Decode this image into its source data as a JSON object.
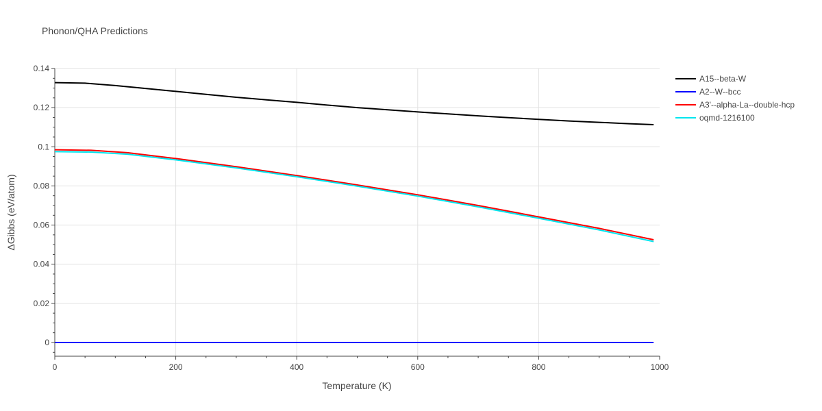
{
  "chart_data": {
    "type": "line",
    "title": "Phonon/QHA Predictions",
    "xlabel": "Temperature (K)",
    "ylabel": "ΔGibbs (eV/atom)",
    "xlim": [
      0,
      1000
    ],
    "ylim": [
      -0.007,
      0.14
    ],
    "x_ticks": [
      "0",
      "200",
      "400",
      "600",
      "800",
      "1000"
    ],
    "y_ticks": [
      "0",
      "0.02",
      "0.04",
      "0.06",
      "0.08",
      "0.1",
      "0.12",
      "0.14"
    ],
    "grid": true,
    "legend_position": "top-right",
    "series": [
      {
        "name": "A15--beta-W",
        "color": "#000000",
        "x": [
          0,
          50,
          100,
          150,
          200,
          250,
          300,
          350,
          400,
          450,
          500,
          550,
          600,
          650,
          700,
          750,
          800,
          850,
          900,
          950,
          990
        ],
        "y": [
          0.1328,
          0.1325,
          0.1313,
          0.1298,
          0.1283,
          0.1268,
          0.1253,
          0.124,
          0.1227,
          0.1213,
          0.12,
          0.1189,
          0.1178,
          0.1168,
          0.1158,
          0.1149,
          0.114,
          0.1132,
          0.1125,
          0.1118,
          0.1113
        ]
      },
      {
        "name": "A2--W--bcc",
        "color": "#0000ff",
        "x": [
          0,
          990
        ],
        "y": [
          0,
          0
        ]
      },
      {
        "name": "A3'--alpha-La--double-hcp",
        "color": "#ff0000",
        "x": [
          0,
          60,
          120,
          200,
          300,
          400,
          500,
          600,
          700,
          800,
          900,
          990
        ],
        "y": [
          0.0985,
          0.0982,
          0.097,
          0.094,
          0.0898,
          0.0853,
          0.0805,
          0.0755,
          0.07,
          0.0642,
          0.0583,
          0.0525
        ]
      },
      {
        "name": "oqmd-1216100",
        "color": "#00e5ee",
        "x": [
          0,
          60,
          120,
          200,
          300,
          400,
          500,
          600,
          700,
          800,
          900,
          990
        ],
        "y": [
          0.0975,
          0.0973,
          0.0962,
          0.0933,
          0.0892,
          0.0847,
          0.0799,
          0.0748,
          0.0693,
          0.0635,
          0.0575,
          0.0516
        ]
      }
    ]
  }
}
